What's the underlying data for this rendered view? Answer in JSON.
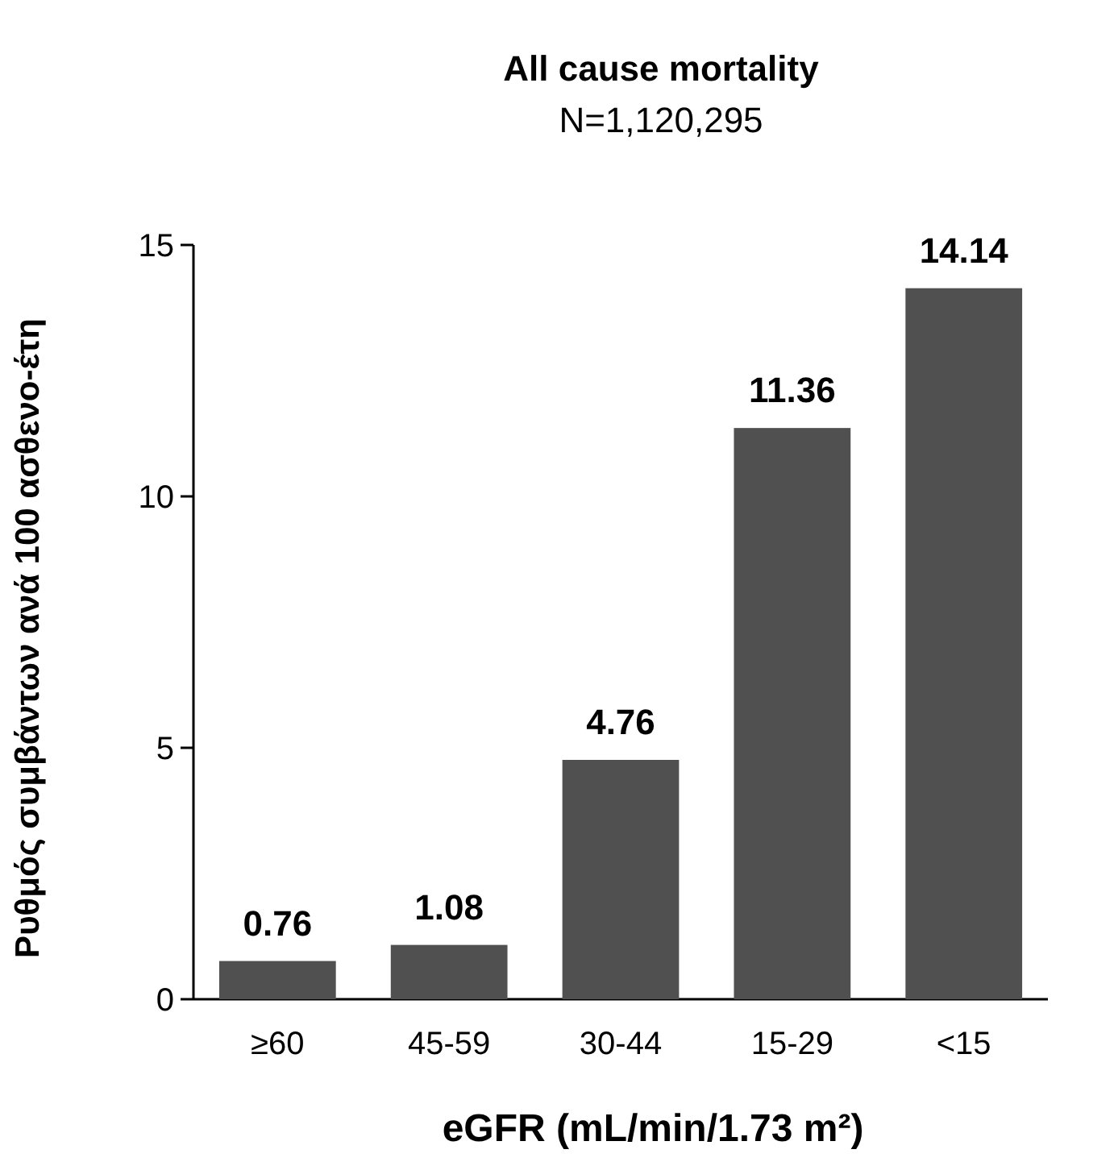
{
  "chart_data": {
    "type": "bar",
    "title": "All cause mortality",
    "subtitle": "N=1,120,295",
    "xlabel": "eGFR (mL/min/1.73 m²)",
    "ylabel": "Ρυθμός συμβάντων ανά 100 ασθενο-έτη",
    "categories": [
      "≥60",
      "45-59",
      "30-44",
      "15-29",
      "<15"
    ],
    "values": [
      0.76,
      1.08,
      4.76,
      11.36,
      14.14
    ],
    "color": "#505050",
    "ylim": [
      0,
      15
    ],
    "yticks": [
      0,
      5,
      10,
      15
    ],
    "data_labels": true,
    "grid": false
  }
}
